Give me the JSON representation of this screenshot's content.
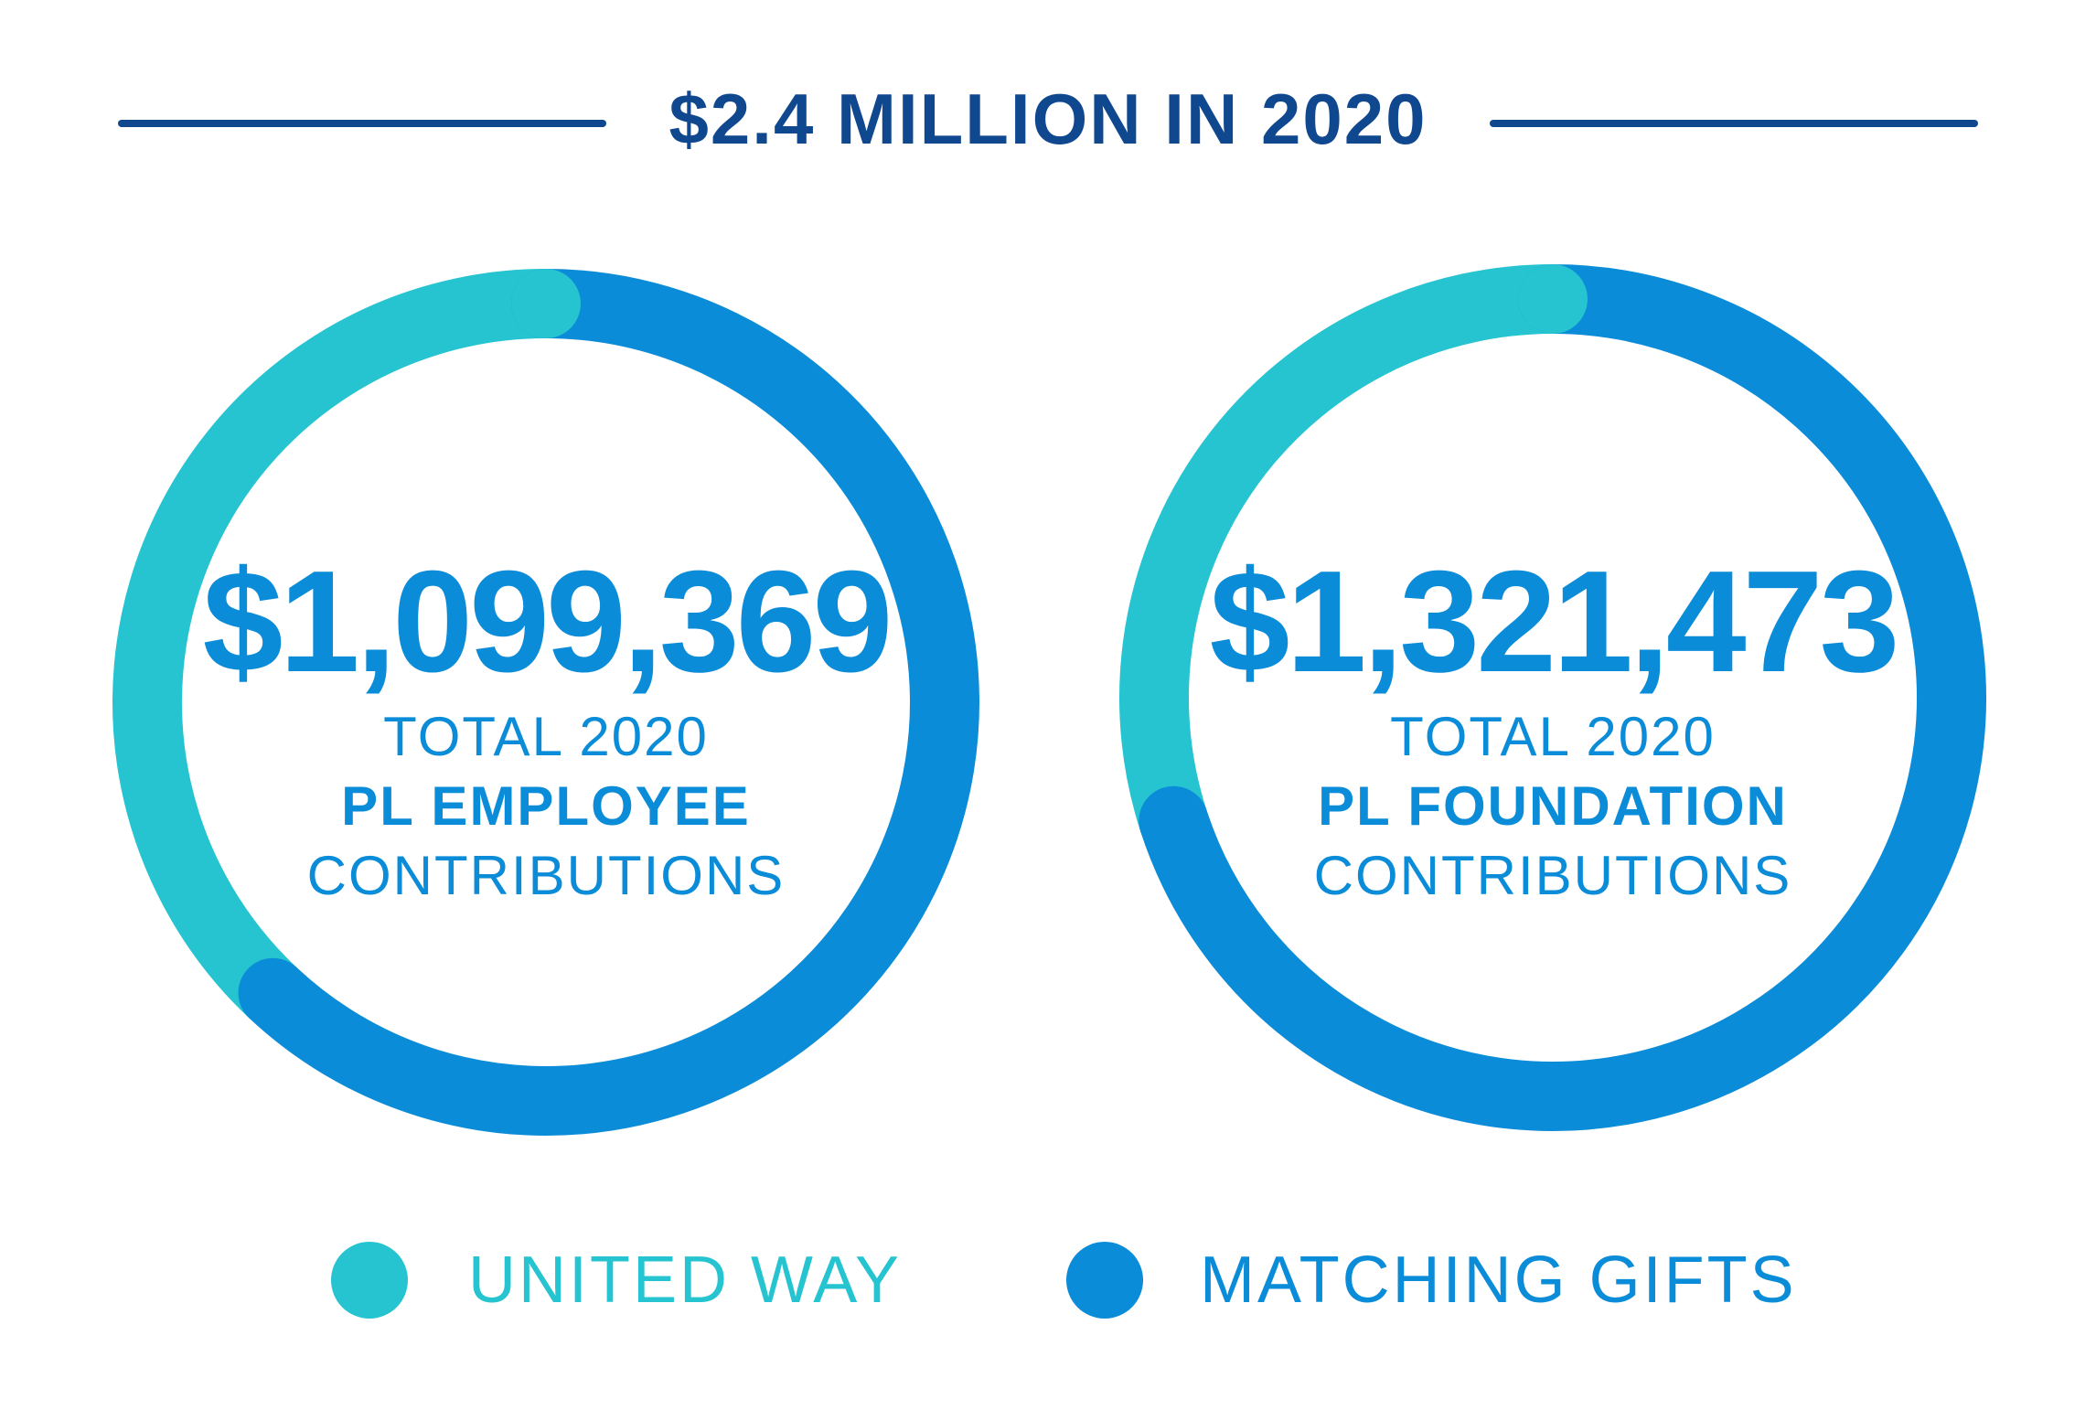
{
  "header": {
    "title": "$2.4 MILLION IN 2020"
  },
  "colors": {
    "united_way": "#25c4d0",
    "matching_gifts": "#0b8cd8",
    "header": "#10488f"
  },
  "chart_data": [
    {
      "type": "pie",
      "variant": "donut",
      "title": "$1,099,369",
      "subtitle": [
        "TOTAL 2020",
        "PL EMPLOYEE",
        "CONTRIBUTIONS"
      ],
      "categories": [
        "UNITED WAY",
        "MATCHING GIFTS"
      ],
      "values": [
        38,
        62
      ],
      "unit": "percent (estimated)"
    },
    {
      "type": "pie",
      "variant": "donut",
      "title": "$1,321,473",
      "subtitle": [
        "TOTAL 2020",
        "PL FOUNDATION",
        "CONTRIBUTIONS"
      ],
      "categories": [
        "UNITED WAY",
        "MATCHING GIFTS"
      ],
      "values": [
        30,
        70
      ],
      "unit": "percent (estimated)"
    }
  ],
  "legend": [
    {
      "label": "UNITED WAY",
      "color": "#25c4d0"
    },
    {
      "label": "MATCHING GIFTS",
      "color": "#0b8cd8"
    }
  ]
}
